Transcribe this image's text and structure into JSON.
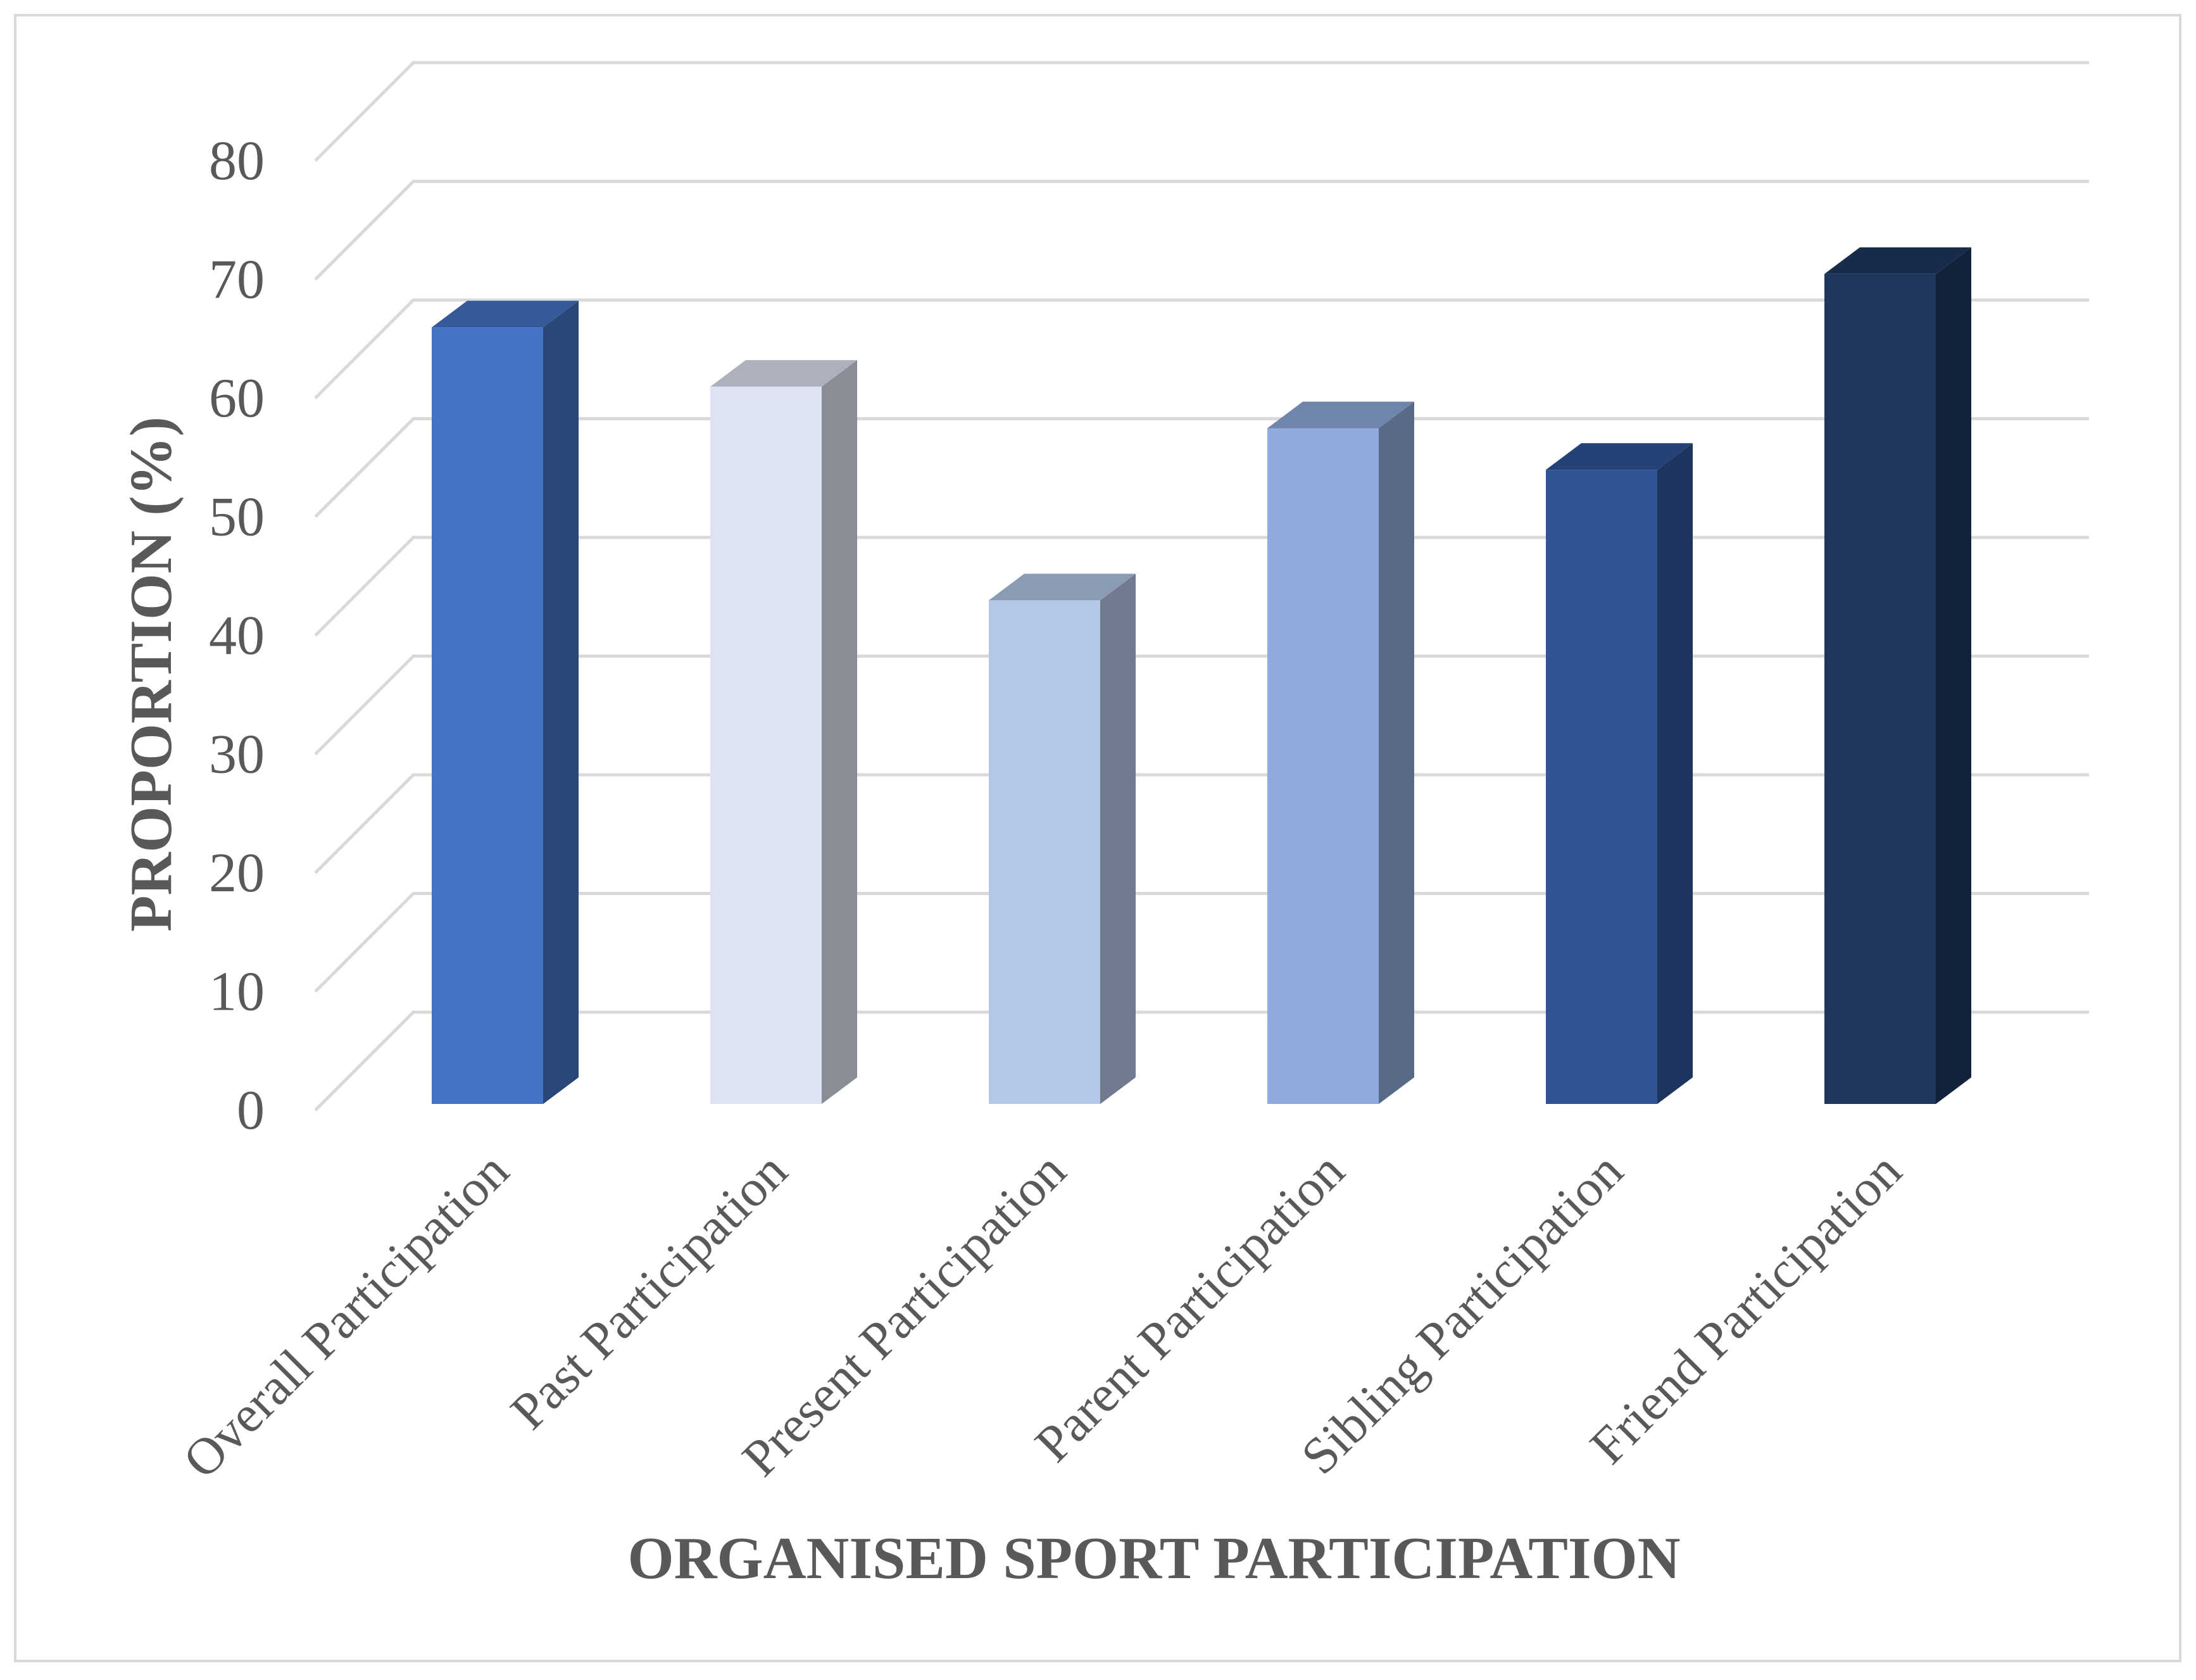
{
  "chart_data": {
    "type": "bar",
    "style": "3d-column",
    "title": "",
    "xlabel": "ORGANISED SPORT PARTICIPATION",
    "ylabel": "PROPORTION (%)",
    "ylim": [
      0,
      80
    ],
    "yticks": [
      "0",
      "10",
      "20",
      "30",
      "40",
      "50",
      "60",
      "70",
      "80"
    ],
    "grid": true,
    "legend": "none",
    "categories": [
      "Overall Participation",
      "Past Participation",
      "Present Participation",
      "Parent Participation",
      "Sibling Participation",
      "Friend Participation"
    ],
    "values": [
      66.5,
      61.5,
      43.5,
      58,
      54.5,
      71
    ],
    "colors": [
      "#4472c4",
      "#dde3f2",
      "#b4c7e7",
      "#8faadc",
      "#2f5597",
      "#1f375f"
    ]
  }
}
